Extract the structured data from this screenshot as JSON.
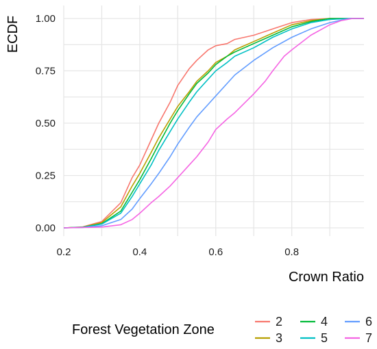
{
  "chart_data": {
    "type": "line",
    "title": "",
    "xlabel": "Crown Ratio",
    "ylabel": "ECDF",
    "xlim": [
      0.2,
      0.99
    ],
    "ylim": [
      0,
      1
    ],
    "x_ticks": [
      0.2,
      0.4,
      0.6,
      0.8
    ],
    "x_tick_labels": [
      "0.2",
      "0.4",
      "0.6",
      "0.8"
    ],
    "y_ticks": [
      0,
      0.25,
      0.5,
      0.75,
      1
    ],
    "y_tick_labels": [
      "0.00",
      "0.25",
      "0.50",
      "0.75",
      "1.00"
    ],
    "grid": true,
    "legend": {
      "title": "Forest Vegetation Zone",
      "position": "bottom",
      "columns": 3
    },
    "series": [
      {
        "name": "2",
        "color": "#F8766D",
        "points": [
          [
            0.2,
            0
          ],
          [
            0.25,
            0.005
          ],
          [
            0.3,
            0.03
          ],
          [
            0.35,
            0.12
          ],
          [
            0.38,
            0.24
          ],
          [
            0.4,
            0.3
          ],
          [
            0.43,
            0.42
          ],
          [
            0.45,
            0.5
          ],
          [
            0.48,
            0.6
          ],
          [
            0.5,
            0.68
          ],
          [
            0.53,
            0.76
          ],
          [
            0.55,
            0.8
          ],
          [
            0.58,
            0.85
          ],
          [
            0.6,
            0.87
          ],
          [
            0.63,
            0.88
          ],
          [
            0.65,
            0.9
          ],
          [
            0.7,
            0.92
          ],
          [
            0.75,
            0.95
          ],
          [
            0.8,
            0.98
          ],
          [
            0.85,
            0.995
          ],
          [
            0.9,
            1
          ],
          [
            0.99,
            1
          ]
        ]
      },
      {
        "name": "3",
        "color": "#B79F00",
        "points": [
          [
            0.2,
            0
          ],
          [
            0.25,
            0.004
          ],
          [
            0.3,
            0.025
          ],
          [
            0.35,
            0.1
          ],
          [
            0.38,
            0.2
          ],
          [
            0.4,
            0.26
          ],
          [
            0.43,
            0.36
          ],
          [
            0.45,
            0.43
          ],
          [
            0.48,
            0.52
          ],
          [
            0.5,
            0.58
          ],
          [
            0.53,
            0.65
          ],
          [
            0.55,
            0.7
          ],
          [
            0.58,
            0.75
          ],
          [
            0.6,
            0.79
          ],
          [
            0.63,
            0.82
          ],
          [
            0.65,
            0.85
          ],
          [
            0.7,
            0.89
          ],
          [
            0.75,
            0.93
          ],
          [
            0.8,
            0.97
          ],
          [
            0.85,
            0.99
          ],
          [
            0.9,
            1
          ],
          [
            0.99,
            1
          ]
        ]
      },
      {
        "name": "4",
        "color": "#00BA38",
        "points": [
          [
            0.2,
            0
          ],
          [
            0.25,
            0.003
          ],
          [
            0.3,
            0.02
          ],
          [
            0.35,
            0.08
          ],
          [
            0.38,
            0.17
          ],
          [
            0.4,
            0.23
          ],
          [
            0.43,
            0.33
          ],
          [
            0.45,
            0.4
          ],
          [
            0.48,
            0.5
          ],
          [
            0.5,
            0.56
          ],
          [
            0.53,
            0.64
          ],
          [
            0.55,
            0.69
          ],
          [
            0.58,
            0.74
          ],
          [
            0.6,
            0.78
          ],
          [
            0.63,
            0.82
          ],
          [
            0.65,
            0.84
          ],
          [
            0.7,
            0.88
          ],
          [
            0.75,
            0.92
          ],
          [
            0.8,
            0.96
          ],
          [
            0.85,
            0.985
          ],
          [
            0.9,
            1
          ],
          [
            0.99,
            1
          ]
        ]
      },
      {
        "name": "5",
        "color": "#00BFC4",
        "points": [
          [
            0.2,
            0
          ],
          [
            0.25,
            0.003
          ],
          [
            0.3,
            0.018
          ],
          [
            0.35,
            0.07
          ],
          [
            0.38,
            0.15
          ],
          [
            0.4,
            0.21
          ],
          [
            0.43,
            0.3
          ],
          [
            0.45,
            0.37
          ],
          [
            0.48,
            0.46
          ],
          [
            0.5,
            0.52
          ],
          [
            0.53,
            0.6
          ],
          [
            0.55,
            0.65
          ],
          [
            0.58,
            0.71
          ],
          [
            0.6,
            0.75
          ],
          [
            0.63,
            0.79
          ],
          [
            0.65,
            0.82
          ],
          [
            0.7,
            0.86
          ],
          [
            0.75,
            0.91
          ],
          [
            0.8,
            0.95
          ],
          [
            0.85,
            0.98
          ],
          [
            0.9,
            0.995
          ],
          [
            0.95,
            1
          ],
          [
            0.99,
            1
          ]
        ]
      },
      {
        "name": "6",
        "color": "#619CFF",
        "points": [
          [
            0.2,
            0
          ],
          [
            0.25,
            0.002
          ],
          [
            0.3,
            0.01
          ],
          [
            0.35,
            0.04
          ],
          [
            0.38,
            0.09
          ],
          [
            0.4,
            0.14
          ],
          [
            0.43,
            0.21
          ],
          [
            0.45,
            0.26
          ],
          [
            0.48,
            0.34
          ],
          [
            0.5,
            0.4
          ],
          [
            0.53,
            0.48
          ],
          [
            0.55,
            0.53
          ],
          [
            0.58,
            0.59
          ],
          [
            0.6,
            0.63
          ],
          [
            0.63,
            0.69
          ],
          [
            0.65,
            0.73
          ],
          [
            0.7,
            0.8
          ],
          [
            0.75,
            0.86
          ],
          [
            0.8,
            0.91
          ],
          [
            0.85,
            0.95
          ],
          [
            0.9,
            0.98
          ],
          [
            0.95,
            1
          ],
          [
            0.99,
            1
          ]
        ]
      },
      {
        "name": "7",
        "color": "#F564E3",
        "points": [
          [
            0.2,
            0
          ],
          [
            0.3,
            0.004
          ],
          [
            0.35,
            0.015
          ],
          [
            0.38,
            0.04
          ],
          [
            0.4,
            0.07
          ],
          [
            0.43,
            0.12
          ],
          [
            0.45,
            0.15
          ],
          [
            0.48,
            0.2
          ],
          [
            0.5,
            0.24
          ],
          [
            0.53,
            0.3
          ],
          [
            0.55,
            0.34
          ],
          [
            0.58,
            0.41
          ],
          [
            0.6,
            0.47
          ],
          [
            0.63,
            0.52
          ],
          [
            0.65,
            0.55
          ],
          [
            0.7,
            0.64
          ],
          [
            0.73,
            0.7
          ],
          [
            0.75,
            0.75
          ],
          [
            0.78,
            0.82
          ],
          [
            0.8,
            0.85
          ],
          [
            0.85,
            0.92
          ],
          [
            0.9,
            0.97
          ],
          [
            0.93,
            0.99
          ],
          [
            0.96,
            1
          ],
          [
            0.99,
            1
          ]
        ]
      }
    ]
  }
}
